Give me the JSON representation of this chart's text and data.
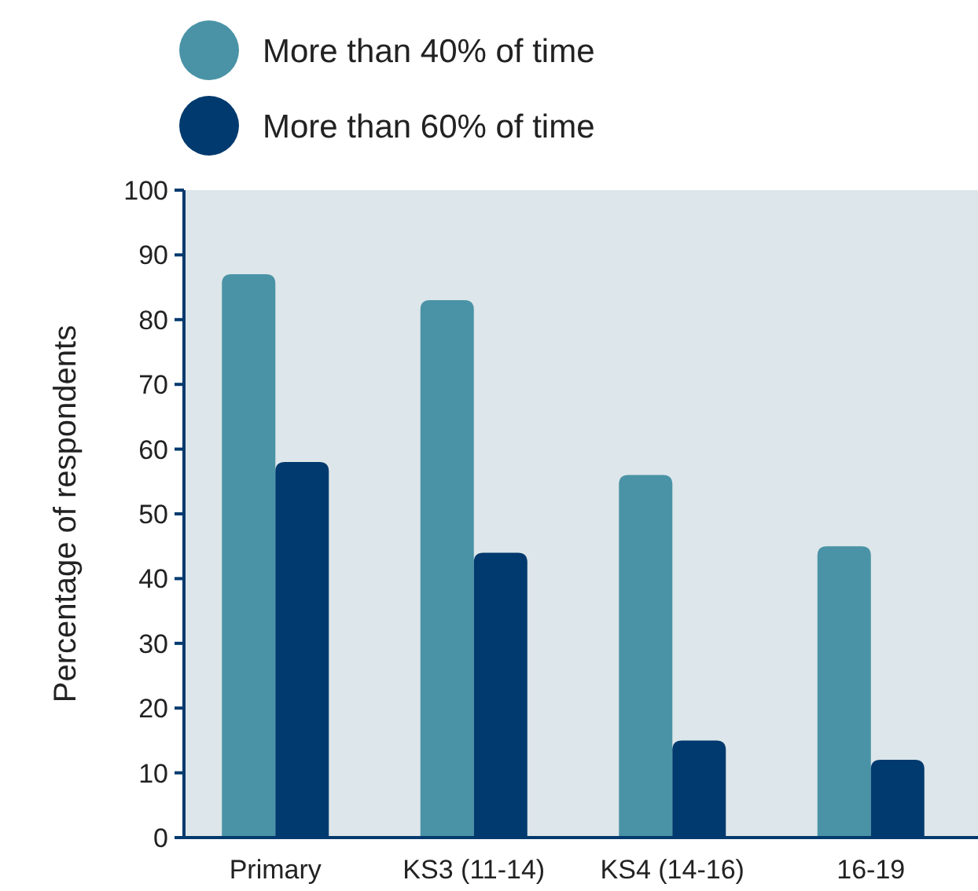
{
  "chart_data": {
    "type": "bar",
    "ylabel": "Percentage of respondents",
    "categories": [
      "Primary",
      "KS3 (11-14)",
      "KS4 (14-16)",
      "16-19"
    ],
    "series": [
      {
        "name": "More than 40% of time",
        "color": "#4a93a6",
        "values": [
          87,
          83,
          56,
          45
        ]
      },
      {
        "name": "More than 60% of time",
        "color": "#003a6e",
        "values": [
          58,
          44,
          15,
          12
        ]
      }
    ],
    "ylim": [
      0,
      100
    ],
    "yticks": [
      0,
      10,
      20,
      30,
      40,
      50,
      60,
      70,
      80,
      90,
      100
    ],
    "legend": "top left",
    "grid": false
  }
}
